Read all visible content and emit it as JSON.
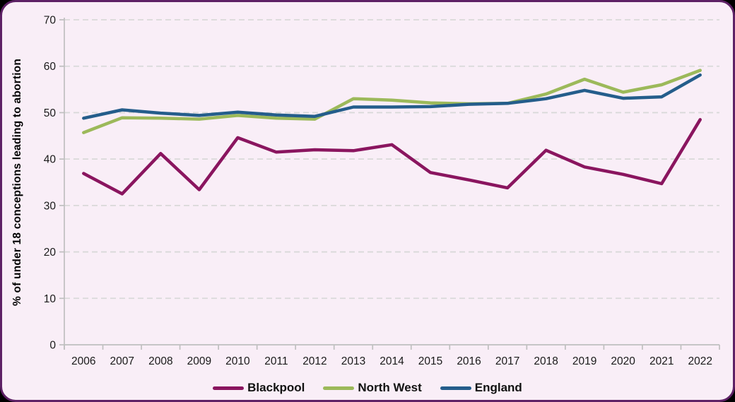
{
  "figure": {
    "background_color": "#F9EEF7",
    "border_color": "#5E2166",
    "grid_color": "#D9D9D9",
    "axis_color": "#BFBFBF",
    "tick_label_color": "#1A1A1A"
  },
  "chart_data": {
    "type": "line",
    "title": "",
    "xlabel": "",
    "ylabel": "% of under 18 conceptions leading to abortion",
    "categories": [
      "2006",
      "2007",
      "2008",
      "2009",
      "2010",
      "2011",
      "2012",
      "2013",
      "2014",
      "2015",
      "2016",
      "2017",
      "2018",
      "2019",
      "2020",
      "2021",
      "2022"
    ],
    "series": [
      {
        "name": "Blackpool",
        "color": "#8A155F",
        "values": [
          36.9,
          32.5,
          41.2,
          33.4,
          44.6,
          41.5,
          42.0,
          41.8,
          43.1,
          37.1,
          35.5,
          33.8,
          41.9,
          38.3,
          36.7,
          34.7,
          48.5
        ]
      },
      {
        "name": "North West",
        "color": "#9CB95A",
        "values": [
          45.7,
          48.9,
          48.8,
          48.6,
          49.4,
          48.8,
          48.6,
          53.0,
          52.7,
          52.1,
          51.9,
          52.0,
          54.0,
          57.2,
          54.4,
          56.0,
          59.1
        ]
      },
      {
        "name": "England",
        "color": "#245D8B",
        "values": [
          48.8,
          50.6,
          49.9,
          49.4,
          50.1,
          49.5,
          49.2,
          51.2,
          51.2,
          51.3,
          51.8,
          52.0,
          53.0,
          54.8,
          53.1,
          53.4,
          58.1
        ]
      }
    ],
    "ylim": [
      0,
      70
    ],
    "yticks": [
      0,
      10,
      20,
      30,
      40,
      50,
      60,
      70
    ],
    "grid": "horizontal-dashed",
    "legend_position": "bottom"
  }
}
